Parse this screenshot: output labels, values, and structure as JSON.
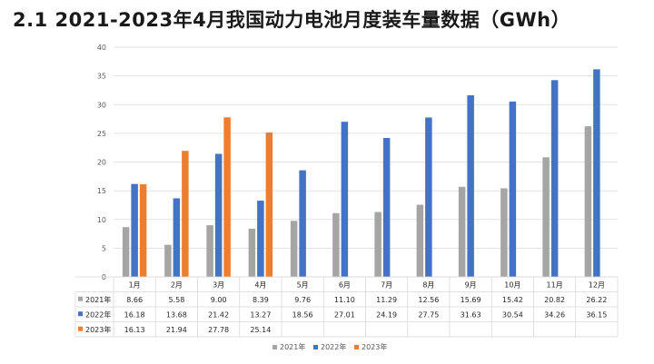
{
  "title": "2.1 2021-2023年4月我国动力电池月度装车量数据（GWh）",
  "chart_data": {
    "type": "bar",
    "categories": [
      "1月",
      "2月",
      "3月",
      "4月",
      "5月",
      "6月",
      "7月",
      "8月",
      "9月",
      "10月",
      "11月",
      "12月"
    ],
    "series": [
      {
        "name": "2021年",
        "color": "#a5a5a5",
        "values": [
          8.66,
          5.58,
          9.0,
          8.39,
          9.76,
          11.1,
          11.29,
          12.56,
          15.69,
          15.42,
          20.82,
          26.22
        ]
      },
      {
        "name": "2022年",
        "color": "#4472c4",
        "values": [
          16.18,
          13.68,
          21.42,
          13.27,
          18.56,
          27.01,
          24.19,
          27.75,
          31.63,
          30.54,
          34.26,
          36.15
        ]
      },
      {
        "name": "2023年",
        "color": "#ed7d31",
        "values": [
          16.13,
          21.94,
          27.78,
          25.14,
          null,
          null,
          null,
          null,
          null,
          null,
          null,
          null
        ]
      }
    ],
    "table_values": [
      [
        "8.66",
        "5.58",
        "9.00",
        "8.39",
        "9.76",
        "11.10",
        "11.29",
        "12.56",
        "15.69",
        "15.42",
        "20.82",
        "26.22"
      ],
      [
        "16.18",
        "13.68",
        "21.42",
        "13.27",
        "18.56",
        "27.01",
        "24.19",
        "27.75",
        "31.63",
        "30.54",
        "34.26",
        "36.15"
      ],
      [
        "16.13",
        "21.94",
        "27.78",
        "25.14",
        "",
        "",
        "",
        "",
        "",
        "",
        "",
        ""
      ]
    ],
    "ylim": [
      0,
      40
    ],
    "yticks": [
      "0",
      "5",
      "10",
      "15",
      "20",
      "25",
      "30",
      "35",
      "40"
    ],
    "grid": true,
    "legend_position": "bottom",
    "data_table": true
  }
}
